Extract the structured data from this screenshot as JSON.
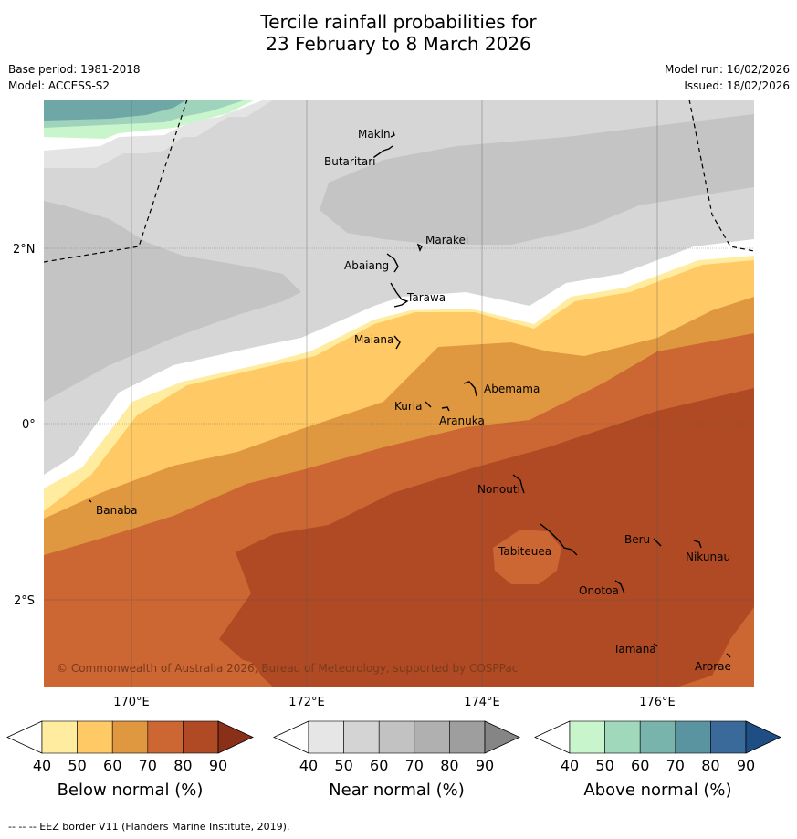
{
  "title_line1": "Tercile rainfall probabilities for",
  "title_line2": "23 February to 8 March 2026",
  "base_period": "Base period: 1981-2018",
  "model": "Model: ACCESS-S2",
  "model_run": "Model run: 16/02/2026",
  "issued": "Issued: 18/02/2026",
  "copyright": "© Commonwealth of Australia 2026, Bureau of Meteorology, supported by COSPPac",
  "footer": "--  --  -- EEZ border V11 (Flanders Marine Institute, 2019).",
  "axes": {
    "lat_ticks": [
      "2°N",
      "0°",
      "2°S"
    ],
    "lon_ticks": [
      "170°E",
      "172°E",
      "174°E",
      "176°E"
    ]
  },
  "places": [
    "Makin",
    "Butaritari",
    "Marakei",
    "Abaiang",
    "Tarawa",
    "Maiana",
    "Abemama",
    "Kuria",
    "Aranuka",
    "Banaba",
    "Nonouti",
    "Tabiteuea",
    "Beru",
    "Nikunau",
    "Onotoa",
    "Tamana",
    "Arorae"
  ],
  "colorbars": [
    {
      "label": "Below normal (%)",
      "ticks": [
        "40",
        "50",
        "60",
        "70",
        "80",
        "90"
      ],
      "colors": [
        "#ffffff",
        "#ffec9e",
        "#ffc966",
        "#e09840",
        "#cc6633",
        "#b04a24",
        "#8a3018"
      ]
    },
    {
      "label": "Near normal (%)",
      "ticks": [
        "40",
        "50",
        "60",
        "70",
        "80",
        "90"
      ],
      "colors": [
        "#ffffff",
        "#e6e6e6",
        "#d4d4d4",
        "#c2c2c2",
        "#b0b0b0",
        "#9e9e9e",
        "#858585"
      ]
    },
    {
      "label": "Above normal (%)",
      "ticks": [
        "40",
        "50",
        "60",
        "70",
        "80",
        "90"
      ],
      "colors": [
        "#ffffff",
        "#c8f5cc",
        "#a0d8bc",
        "#78b4ac",
        "#5a94a0",
        "#3a6a9a",
        "#1f4e85"
      ]
    }
  ]
}
